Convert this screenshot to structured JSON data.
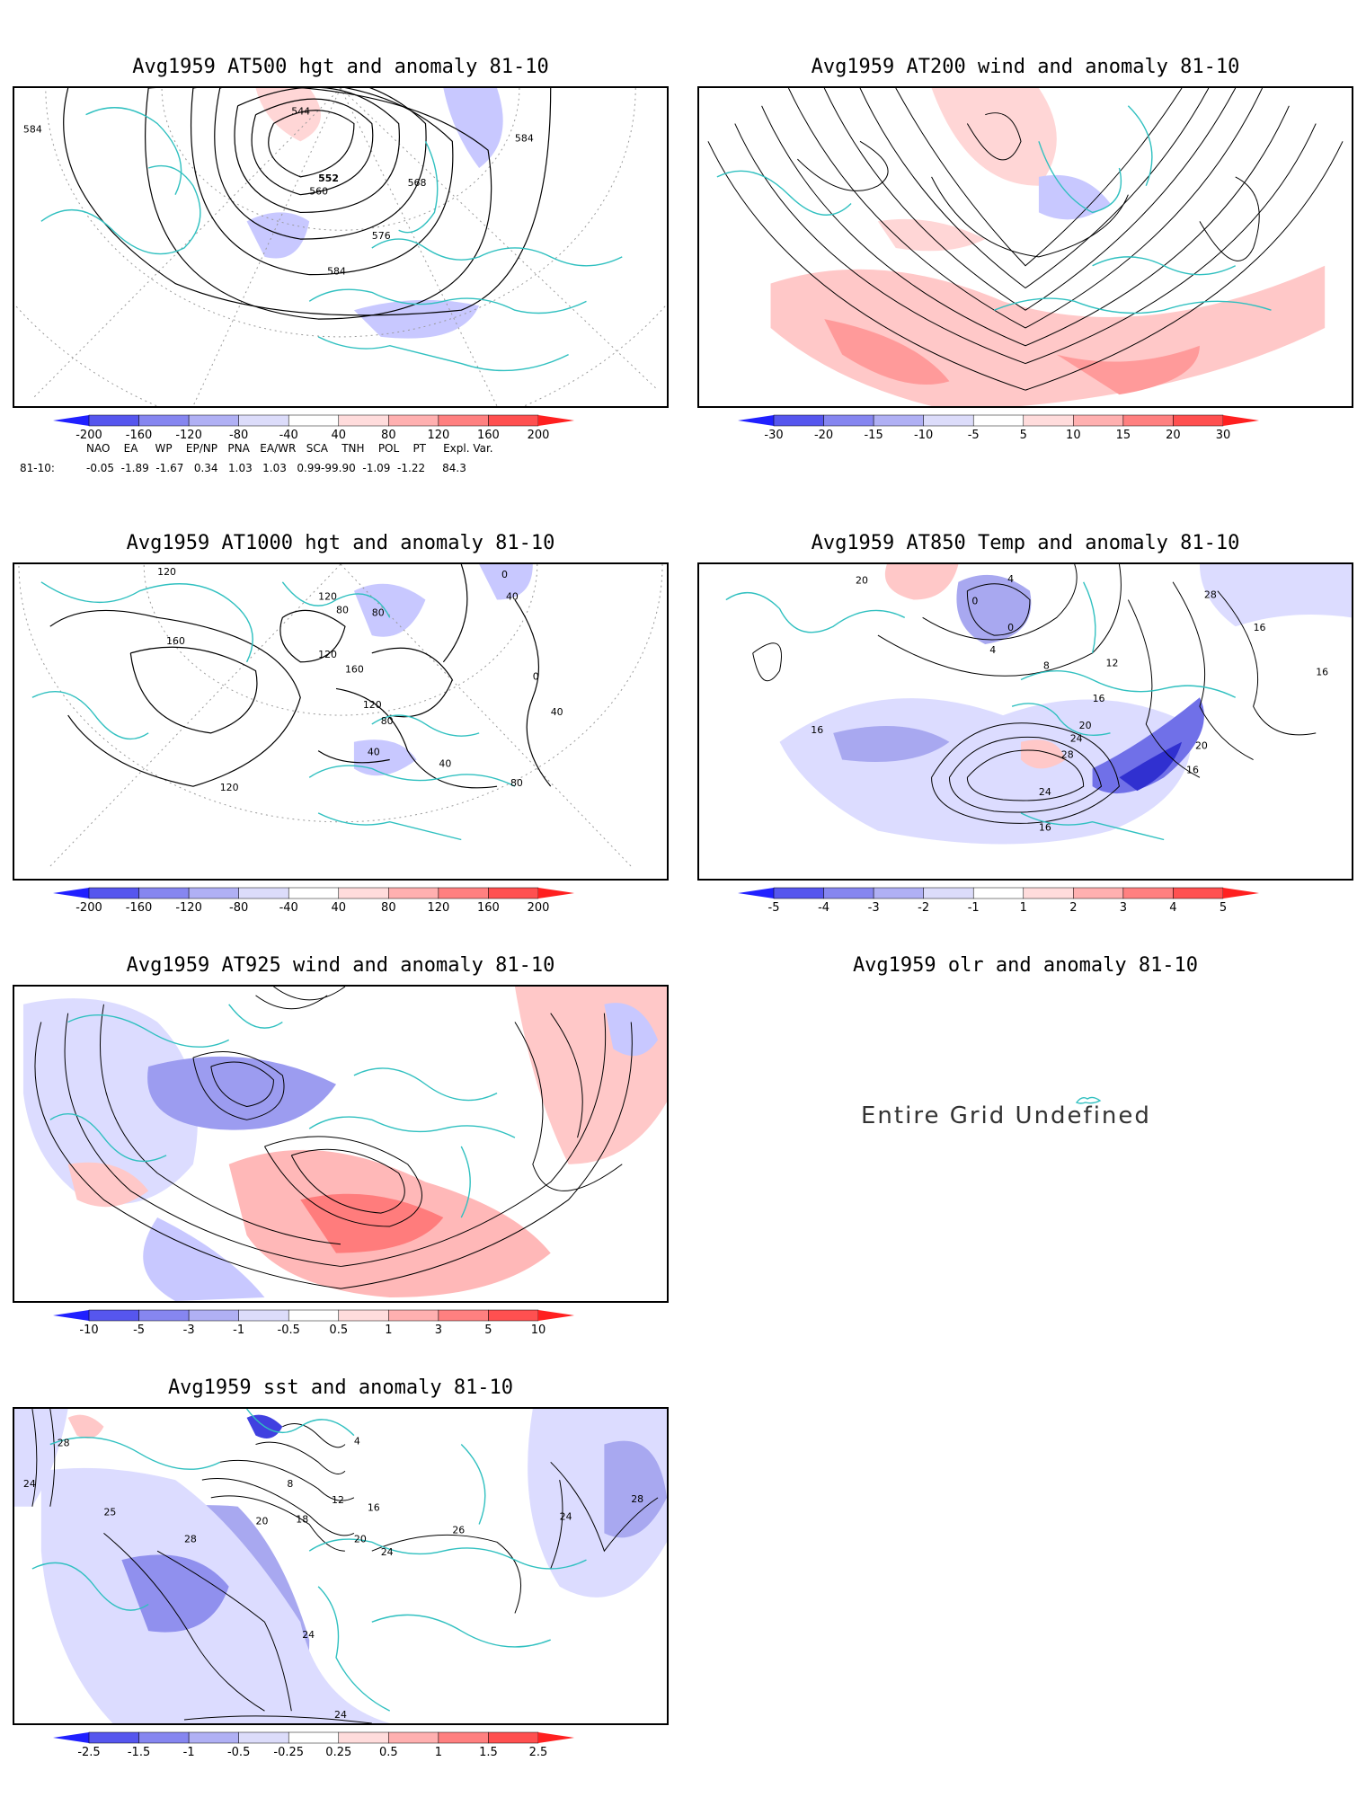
{
  "panels": [
    {
      "id": "p1",
      "title": "Avg1959 AT500 hgt and anomaly 81-10",
      "contour_labels": [
        "544",
        "552",
        "560",
        "568",
        "576",
        "584",
        "584",
        "584"
      ],
      "colorbar": [
        "-200",
        "-160",
        "-120",
        "-80",
        "-40",
        "40",
        "80",
        "120",
        "160",
        "200"
      ]
    },
    {
      "id": "p2",
      "title": "Avg1959 AT200 wind and anomaly 81-10",
      "contour_labels": [],
      "colorbar": [
        "-30",
        "-20",
        "-15",
        "-10",
        "-5",
        "5",
        "10",
        "15",
        "20",
        "30"
      ]
    },
    {
      "id": "p3",
      "title": "Avg1959 AT1000 hgt and anomaly 81-10",
      "contour_labels": [
        "120",
        "120",
        "80",
        "80",
        "160",
        "120",
        "160",
        "120",
        "80",
        "40",
        "40",
        "0",
        "40",
        "80",
        "40",
        "120",
        "0"
      ],
      "colorbar": [
        "-200",
        "-160",
        "-120",
        "-80",
        "-40",
        "40",
        "80",
        "120",
        "160",
        "200"
      ]
    },
    {
      "id": "p4",
      "title": "Avg1959 AT850 Temp and anomaly 81-10",
      "contour_labels": [
        "20",
        "4",
        "0",
        "0",
        "4",
        "8",
        "12",
        "16",
        "20",
        "24",
        "28",
        "24",
        "16",
        "16",
        "20",
        "28",
        "16",
        "16",
        "16"
      ],
      "colorbar": [
        "-5",
        "-4",
        "-3",
        "-2",
        "-1",
        "1",
        "2",
        "3",
        "4",
        "5"
      ]
    },
    {
      "id": "p5",
      "title": "Avg1959 AT925 wind and anomaly 81-10",
      "contour_labels": [],
      "colorbar": [
        "-10",
        "-5",
        "-3",
        "-1",
        "-0.5",
        "0.5",
        "1",
        "3",
        "5",
        "10"
      ]
    },
    {
      "id": "p6",
      "title": "Avg1959 olr and anomaly 81-10",
      "undefined_text": "Entire Grid Undefined"
    },
    {
      "id": "p7",
      "title": "Avg1959 sst and anomaly 81-10",
      "contour_labels": [
        "28",
        "24",
        "25",
        "28",
        "20",
        "18",
        "12",
        "8",
        "4",
        "16",
        "20",
        "24",
        "26",
        "24",
        "28",
        "24",
        "24"
      ],
      "colorbar": [
        "-2.5",
        "-1.5",
        "-1",
        "-0.5",
        "-0.25",
        "0.25",
        "0.5",
        "1",
        "1.5",
        "2.5"
      ]
    }
  ],
  "indices": {
    "header": "NAO    EA     WP    EP/NP   PNA   EA/WR   SCA    TNH    POL    PT     Expl. Var.",
    "row_label": "81-10:",
    "values": "-0.05  -1.89  -1.67   0.34   1.03   1.03   0.99-99.90  -1.09  -1.22     84.3"
  },
  "colors": {
    "land_outline": "#30c0c0",
    "contour": "#000000",
    "negative_strong": "#2020ff",
    "positive_strong": "#ff2020"
  }
}
